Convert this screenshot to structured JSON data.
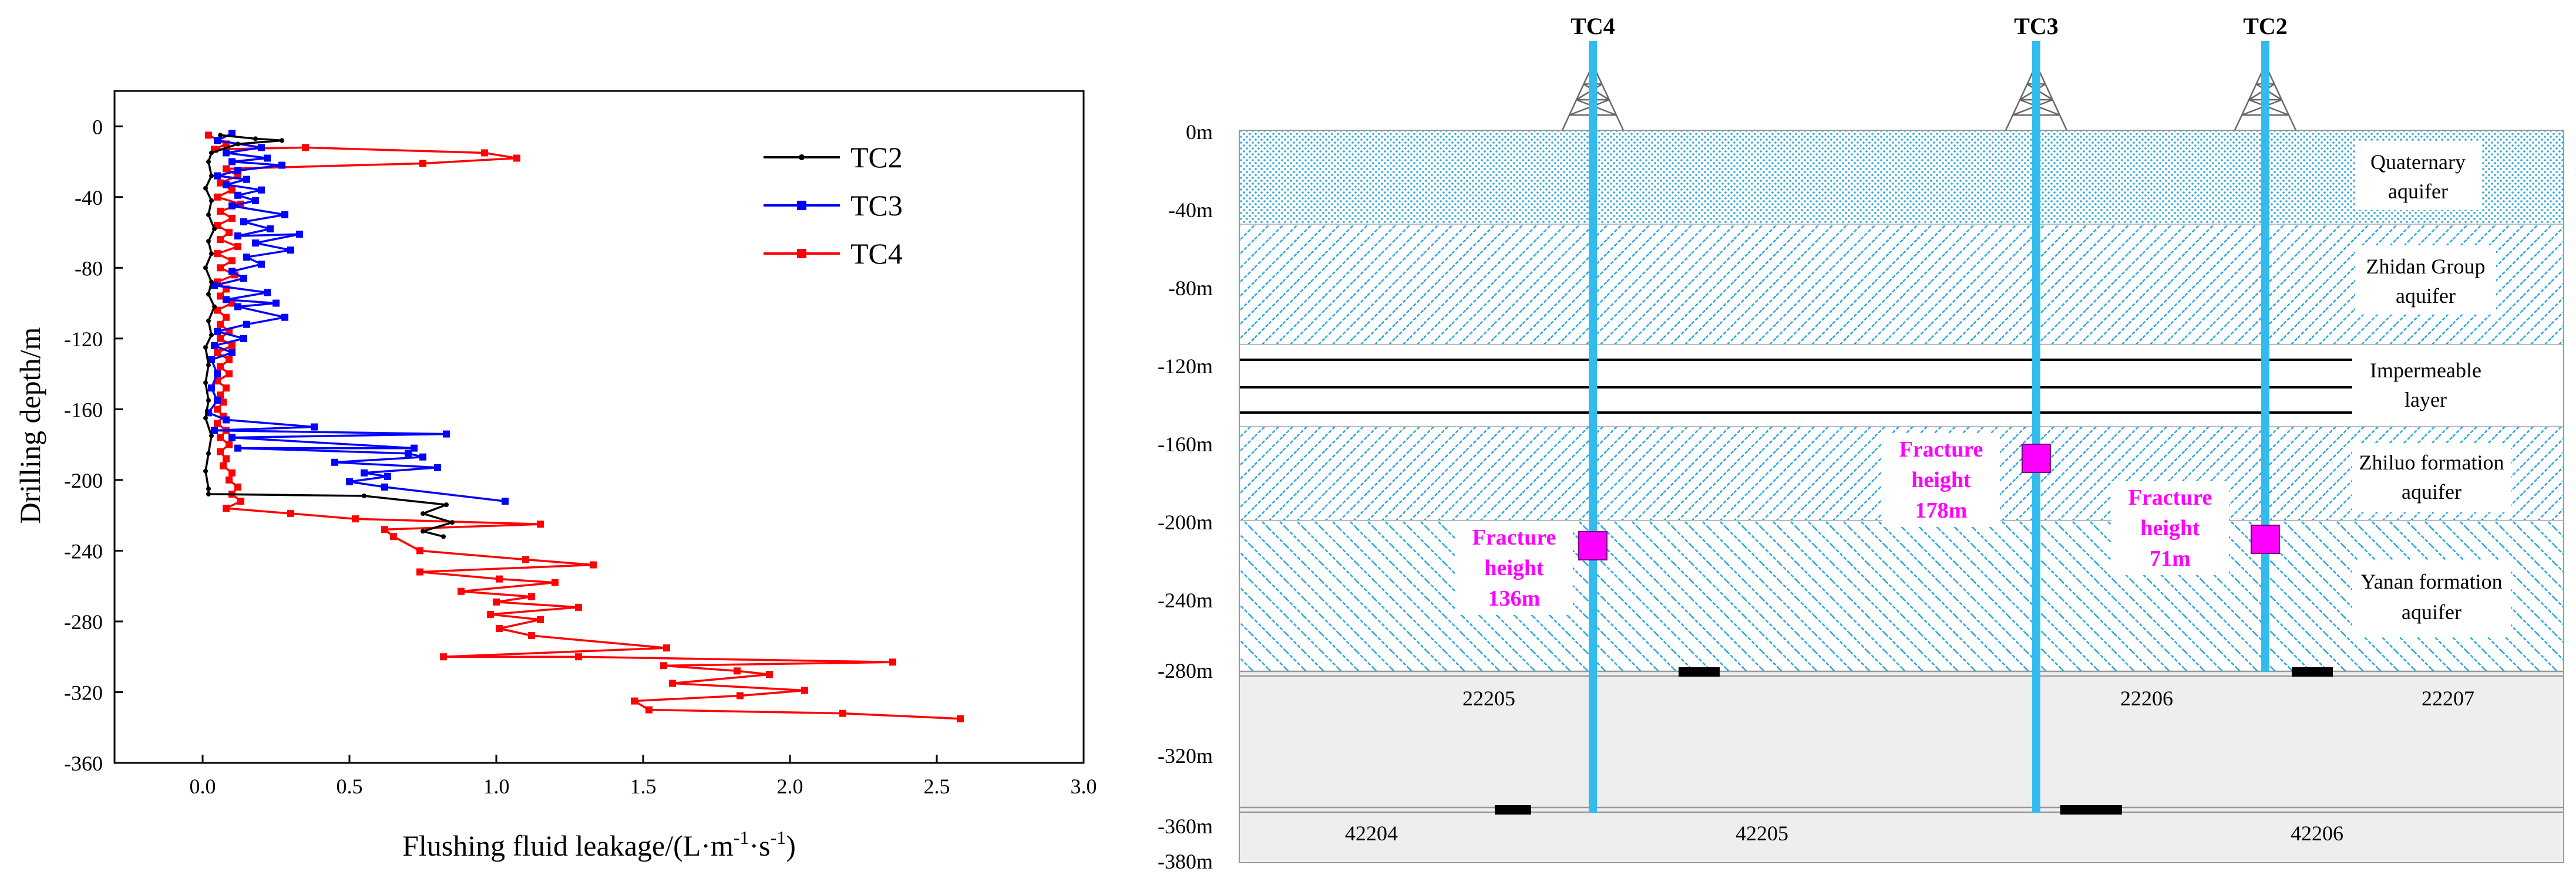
{
  "colors": {
    "TC2": "#000000",
    "TC3": "#0000ff",
    "TC4": "#ff0000",
    "well": "#33bbee",
    "hatch": "#2aa8e0",
    "fracture": "#ff00ff",
    "coal": "#eeeeee"
  },
  "chart_data": {
    "type": "line",
    "xlabel_main": "Flushing fluid leakage/(L·m",
    "xlabel_sup1": "-1",
    "xlabel_mid": "·s",
    "xlabel_sup2": "-1",
    "xlabel_end": ")",
    "ylabel": "Drilling depth/m",
    "xlim": [
      -0.3,
      3.0
    ],
    "ylim": [
      -360,
      20
    ],
    "x_ticks": [
      "0.0",
      "0.5",
      "1.0",
      "1.5",
      "2.0",
      "2.5",
      "3.0"
    ],
    "x_tick_values": [
      0,
      0.5,
      1.0,
      1.5,
      2.0,
      2.5,
      3.0
    ],
    "y_ticks": [
      "0",
      "-40",
      "-80",
      "-120",
      "-160",
      "-200",
      "-240",
      "-280",
      "-320",
      "-360"
    ],
    "y_tick_values": [
      0,
      -40,
      -80,
      -120,
      -160,
      -200,
      -240,
      -280,
      -320,
      -360
    ],
    "legend_position": "top-right",
    "series": [
      {
        "name": "TC2",
        "marker": "dot",
        "points": [
          [
            0.06,
            -5
          ],
          [
            0.18,
            -7
          ],
          [
            0.27,
            -8
          ],
          [
            0.12,
            -10
          ],
          [
            0.03,
            -15
          ],
          [
            0.02,
            -20
          ],
          [
            0.03,
            -28
          ],
          [
            0.01,
            -35
          ],
          [
            0.03,
            -42
          ],
          [
            0.02,
            -50
          ],
          [
            0.04,
            -58
          ],
          [
            0.02,
            -65
          ],
          [
            0.03,
            -72
          ],
          [
            0.01,
            -80
          ],
          [
            0.03,
            -88
          ],
          [
            0.02,
            -95
          ],
          [
            0.04,
            -102
          ],
          [
            0.02,
            -110
          ],
          [
            0.03,
            -118
          ],
          [
            0.01,
            -125
          ],
          [
            0.02,
            -135
          ],
          [
            0.01,
            -145
          ],
          [
            0.02,
            -155
          ],
          [
            0.01,
            -165
          ],
          [
            0.03,
            -175
          ],
          [
            0.02,
            -185
          ],
          [
            0.01,
            -195
          ],
          [
            0.02,
            -205
          ],
          [
            0.02,
            -208
          ],
          [
            0.55,
            -209
          ],
          [
            0.83,
            -214
          ],
          [
            0.75,
            -219
          ],
          [
            0.85,
            -224
          ],
          [
            0.75,
            -229
          ],
          [
            0.82,
            -232
          ]
        ]
      },
      {
        "name": "TC3",
        "marker": "square",
        "points": [
          [
            0.1,
            -4
          ],
          [
            0.05,
            -8
          ],
          [
            0.2,
            -12
          ],
          [
            0.08,
            -15
          ],
          [
            0.22,
            -18
          ],
          [
            0.1,
            -20
          ],
          [
            0.27,
            -22
          ],
          [
            0.12,
            -25
          ],
          [
            0.05,
            -28
          ],
          [
            0.15,
            -30
          ],
          [
            0.08,
            -33
          ],
          [
            0.2,
            -36
          ],
          [
            0.12,
            -39
          ],
          [
            0.18,
            -42
          ],
          [
            0.1,
            -45
          ],
          [
            0.28,
            -50
          ],
          [
            0.14,
            -54
          ],
          [
            0.23,
            -58
          ],
          [
            0.12,
            -62
          ],
          [
            0.33,
            -61
          ],
          [
            0.18,
            -66
          ],
          [
            0.3,
            -70
          ],
          [
            0.15,
            -74
          ],
          [
            0.2,
            -78
          ],
          [
            0.1,
            -82
          ],
          [
            0.14,
            -86
          ],
          [
            0.04,
            -90
          ],
          [
            0.22,
            -94
          ],
          [
            0.08,
            -98
          ],
          [
            0.25,
            -100
          ],
          [
            0.12,
            -102
          ],
          [
            0.28,
            -108
          ],
          [
            0.15,
            -112
          ],
          [
            0.05,
            -116
          ],
          [
            0.14,
            -120
          ],
          [
            0.04,
            -124
          ],
          [
            0.1,
            -128
          ],
          [
            0.03,
            -132
          ],
          [
            0.05,
            -140
          ],
          [
            0.03,
            -148
          ],
          [
            0.05,
            -155
          ],
          [
            0.02,
            -162
          ],
          [
            0.08,
            -166
          ],
          [
            0.38,
            -170
          ],
          [
            0.04,
            -172
          ],
          [
            0.83,
            -174
          ],
          [
            0.1,
            -176
          ],
          [
            0.72,
            -182
          ],
          [
            0.12,
            -182
          ],
          [
            0.7,
            -185
          ],
          [
            0.75,
            -187
          ],
          [
            0.45,
            -190
          ],
          [
            0.8,
            -193
          ],
          [
            0.55,
            -196
          ],
          [
            0.63,
            -198
          ],
          [
            0.5,
            -201
          ],
          [
            0.62,
            -204
          ],
          [
            1.03,
            -212
          ]
        ]
      },
      {
        "name": "TC4",
        "marker": "square",
        "points": [
          [
            0.02,
            -5
          ],
          [
            0.08,
            -10
          ],
          [
            0.04,
            -13
          ],
          [
            0.35,
            -12
          ],
          [
            0.96,
            -15
          ],
          [
            1.07,
            -18
          ],
          [
            0.75,
            -21
          ],
          [
            0.08,
            -24
          ],
          [
            0.12,
            -28
          ],
          [
            0.06,
            -32
          ],
          [
            0.1,
            -36
          ],
          [
            0.05,
            -40
          ],
          [
            0.13,
            -44
          ],
          [
            0.06,
            -48
          ],
          [
            0.1,
            -52
          ],
          [
            0.05,
            -56
          ],
          [
            0.09,
            -60
          ],
          [
            0.06,
            -64
          ],
          [
            0.12,
            -68
          ],
          [
            0.05,
            -72
          ],
          [
            0.1,
            -76
          ],
          [
            0.06,
            -80
          ],
          [
            0.11,
            -84
          ],
          [
            0.05,
            -88
          ],
          [
            0.08,
            -92
          ],
          [
            0.06,
            -96
          ],
          [
            0.1,
            -100
          ],
          [
            0.05,
            -104
          ],
          [
            0.08,
            -108
          ],
          [
            0.06,
            -112
          ],
          [
            0.09,
            -116
          ],
          [
            0.06,
            -120
          ],
          [
            0.1,
            -124
          ],
          [
            0.05,
            -128
          ],
          [
            0.09,
            -132
          ],
          [
            0.06,
            -136
          ],
          [
            0.09,
            -140
          ],
          [
            0.05,
            -144
          ],
          [
            0.08,
            -148
          ],
          [
            0.06,
            -152
          ],
          [
            0.07,
            -156
          ],
          [
            0.05,
            -160
          ],
          [
            0.07,
            -164
          ],
          [
            0.05,
            -168
          ],
          [
            0.08,
            -172
          ],
          [
            0.06,
            -176
          ],
          [
            0.09,
            -180
          ],
          [
            0.06,
            -184
          ],
          [
            0.08,
            -188
          ],
          [
            0.07,
            -192
          ],
          [
            0.1,
            -196
          ],
          [
            0.09,
            -200
          ],
          [
            0.12,
            -204
          ],
          [
            0.1,
            -208
          ],
          [
            0.13,
            -212
          ],
          [
            0.08,
            -216
          ],
          [
            0.3,
            -219
          ],
          [
            0.52,
            -222
          ],
          [
            1.15,
            -225
          ],
          [
            0.62,
            -228
          ],
          [
            0.65,
            -232
          ],
          [
            0.74,
            -240
          ],
          [
            1.1,
            -245
          ],
          [
            1.33,
            -248
          ],
          [
            0.74,
            -252
          ],
          [
            1.01,
            -256
          ],
          [
            1.2,
            -258
          ],
          [
            0.88,
            -263
          ],
          [
            1.12,
            -266
          ],
          [
            1.0,
            -269
          ],
          [
            1.28,
            -272
          ],
          [
            0.98,
            -276
          ],
          [
            1.15,
            -279
          ],
          [
            1.01,
            -284
          ],
          [
            1.12,
            -288
          ],
          [
            1.58,
            -295
          ],
          [
            0.82,
            -300
          ],
          [
            1.28,
            -300
          ],
          [
            2.35,
            -303
          ],
          [
            1.57,
            -305
          ],
          [
            1.82,
            -308
          ],
          [
            1.93,
            -310
          ],
          [
            1.6,
            -315
          ],
          [
            2.05,
            -319
          ],
          [
            1.83,
            -322
          ],
          [
            1.47,
            -325
          ],
          [
            1.52,
            -330
          ],
          [
            2.18,
            -332
          ],
          [
            2.58,
            -335
          ]
        ]
      }
    ]
  },
  "diagram": {
    "wells": [
      {
        "id": "TC4",
        "label": "TC4",
        "fracture_depth": -212
      },
      {
        "id": "TC3",
        "label": "TC3",
        "fracture_depth": -168
      },
      {
        "id": "TC2",
        "label": "TC2",
        "fracture_depth": -210
      }
    ],
    "depth_labels": [
      "0m",
      "-40m",
      "-80m",
      "-120m",
      "-160m",
      "-200m",
      "-240m",
      "-280m",
      "-320m",
      "-360m",
      "-380m"
    ],
    "depth_values": [
      0,
      -40,
      -80,
      -120,
      -160,
      -200,
      -240,
      -280,
      -320,
      -360,
      -380
    ],
    "layers": {
      "quaternary": [
        "Quaternary",
        "aquifer"
      ],
      "zhidan": [
        "Zhidan Group",
        "aquifer"
      ],
      "impermeable": [
        "Impermeable",
        "layer"
      ],
      "zhiluo": [
        "Zhiluo formation",
        "aquifer"
      ],
      "yanan": [
        "Yanan formation",
        "aquifer"
      ]
    },
    "fractures": {
      "TC4": [
        "Fracture",
        "height",
        "136m"
      ],
      "TC3": [
        "Fracture",
        "height",
        "178m"
      ],
      "TC2": [
        "Fracture",
        "height",
        "71m"
      ]
    },
    "working_faces_upper": [
      "22205",
      "22206",
      "22207"
    ],
    "working_faces_lower": [
      "42204",
      "42205",
      "42206"
    ]
  }
}
